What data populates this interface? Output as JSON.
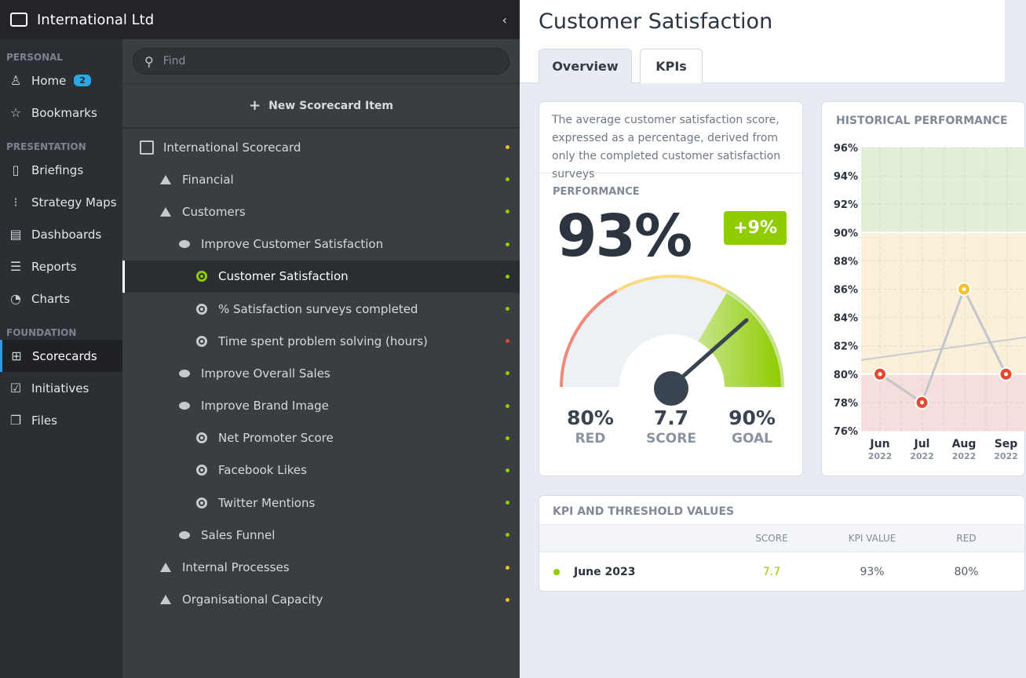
{
  "header": {
    "org_name": "International Ltd",
    "collapse_icon": "chevron-left-icon"
  },
  "nav": {
    "sections": [
      {
        "label": "PERSONAL",
        "items": [
          {
            "label": "Home",
            "icon": "user-icon",
            "badge": "2"
          },
          {
            "label": "Bookmarks",
            "icon": "star-icon"
          }
        ]
      },
      {
        "label": "PRESENTATION",
        "items": [
          {
            "label": "Briefings",
            "icon": "book-icon"
          },
          {
            "label": "Strategy Maps",
            "icon": "strategy-map-icon"
          },
          {
            "label": "Dashboards",
            "icon": "dashboard-icon"
          },
          {
            "label": "Reports",
            "icon": "report-icon"
          },
          {
            "label": "Charts",
            "icon": "pie-chart-icon"
          }
        ]
      },
      {
        "label": "FOUNDATION",
        "items": [
          {
            "label": "Scorecards",
            "icon": "scorecard-icon",
            "active": true
          },
          {
            "label": "Initiatives",
            "icon": "checkbox-icon"
          },
          {
            "label": "Files",
            "icon": "files-icon"
          }
        ]
      }
    ]
  },
  "tree": {
    "search_placeholder": "Find",
    "new_item_label": "New Scorecard Item",
    "nodes": [
      {
        "label": "International Scorecard",
        "type": "scorecard",
        "level": 0,
        "status": "#f5b82e"
      },
      {
        "label": "Financial",
        "type": "perspective",
        "level": 1,
        "status": "#8fcc00"
      },
      {
        "label": "Customers",
        "type": "perspective",
        "level": 1,
        "status": "#8fcc00"
      },
      {
        "label": "Improve Customer Satisfaction",
        "type": "objective",
        "level": 2,
        "status": "#8fcc00"
      },
      {
        "label": "Customer Satisfaction",
        "type": "kpi",
        "level": 3,
        "status": "#8fcc00",
        "selected": true
      },
      {
        "label": "% Satisfaction surveys completed",
        "type": "kpi",
        "level": 3,
        "status": "#8fcc00"
      },
      {
        "label": "Time spent problem solving (hours)",
        "type": "kpi",
        "level": 3,
        "status": "#e8492e"
      },
      {
        "label": "Improve Overall Sales",
        "type": "objective",
        "level": 2,
        "status": "#8fcc00"
      },
      {
        "label": "Improve Brand Image",
        "type": "objective",
        "level": 2,
        "status": "#8fcc00"
      },
      {
        "label": "Net Promoter Score",
        "type": "kpi",
        "level": 3,
        "status": "#8fcc00"
      },
      {
        "label": "Facebook Likes",
        "type": "kpi",
        "level": 3,
        "status": "#8fcc00"
      },
      {
        "label": "Twitter Mentions",
        "type": "kpi",
        "level": 3,
        "status": "#8fcc00"
      },
      {
        "label": "Sales Funnel",
        "type": "objective",
        "level": 2,
        "status": "#8fcc00"
      },
      {
        "label": "Internal Processes",
        "type": "perspective",
        "level": 1,
        "status": "#f5b82e"
      },
      {
        "label": "Organisational Capacity",
        "type": "perspective",
        "level": 1,
        "status": "#f5b82e"
      }
    ]
  },
  "main": {
    "title": "Customer Satisfaction",
    "tabs": [
      {
        "label": "Overview",
        "active": true
      },
      {
        "label": "KPIs"
      }
    ],
    "description": "The average customer satisfaction score, expressed as a percentage, derived from only the completed customer satisfaction surveys",
    "performance": {
      "label": "PERFORMANCE",
      "value": "93%",
      "change": "+9%",
      "red": "80%",
      "red_label": "RED",
      "score": "7.7",
      "score_label": "SCORE",
      "goal": "90%",
      "goal_label": "GOAL",
      "gauge_fill_fraction": 0.77
    },
    "history_title": "HISTORICAL PERFORMANCE",
    "table": {
      "title": "KPI AND THRESHOLD VALUES",
      "columns": [
        "",
        "SCORE",
        "KPI VALUE",
        "RED"
      ],
      "rows": [
        {
          "period": "June 2023",
          "score": "7.7",
          "kpi_value": "93%",
          "red": "80%",
          "status": "#8fcc00"
        }
      ]
    }
  },
  "chart_data": {
    "type": "line",
    "title": "HISTORICAL PERFORMANCE",
    "categories": [
      "Jun",
      "Jul",
      "Aug",
      "Sep"
    ],
    "category_years": [
      "2022",
      "2022",
      "2022",
      "2022"
    ],
    "values": [
      80,
      78,
      86,
      80
    ],
    "point_colors": [
      "#e8492e",
      "#e8492e",
      "#f5c12e",
      "#e8492e"
    ],
    "trend_line": {
      "start": 81,
      "end": 82.6
    },
    "ylim": [
      76,
      96
    ],
    "yticks": [
      "76%",
      "78%",
      "80%",
      "82%",
      "84%",
      "86%",
      "88%",
      "90%",
      "92%",
      "94%",
      "96%"
    ],
    "bands": [
      {
        "from": 76,
        "to": 80,
        "color": "#f5dedb"
      },
      {
        "from": 80,
        "to": 90,
        "color": "#faefd9"
      },
      {
        "from": 90,
        "to": 96,
        "color": "#e3eed6"
      }
    ],
    "grid": true
  }
}
